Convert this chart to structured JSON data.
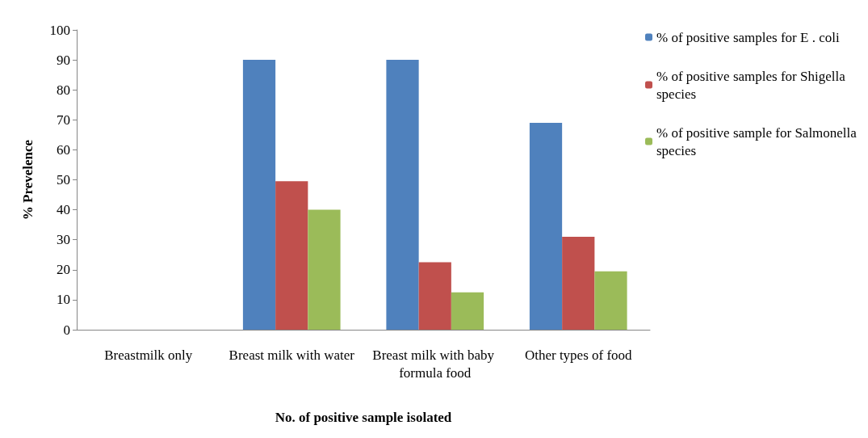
{
  "chart_data": {
    "type": "bar",
    "xlabel": "No. of positive sample isolated",
    "ylabel": "% Prevelence",
    "categories": [
      "Breastmilk only",
      "Breast milk with water",
      "Breast milk with baby formula food",
      "Other types of food"
    ],
    "series": [
      {
        "name": "% of positive samples for E . coli",
        "color": "#4f81bd",
        "values": [
          0,
          90,
          90,
          69
        ]
      },
      {
        "name": "% of positive samples for Shigella species",
        "color": "#c0504d",
        "values": [
          0,
          49.5,
          22.5,
          31
        ]
      },
      {
        "name": "% of positive sample for Salmonella species",
        "color": "#9bbb59",
        "values": [
          0,
          40,
          12.5,
          19.5
        ]
      }
    ],
    "ylim": [
      0,
      100
    ],
    "yticks": [
      0,
      10,
      20,
      30,
      40,
      50,
      60,
      70,
      80,
      90,
      100
    ],
    "grid": false,
    "legend": "right"
  }
}
